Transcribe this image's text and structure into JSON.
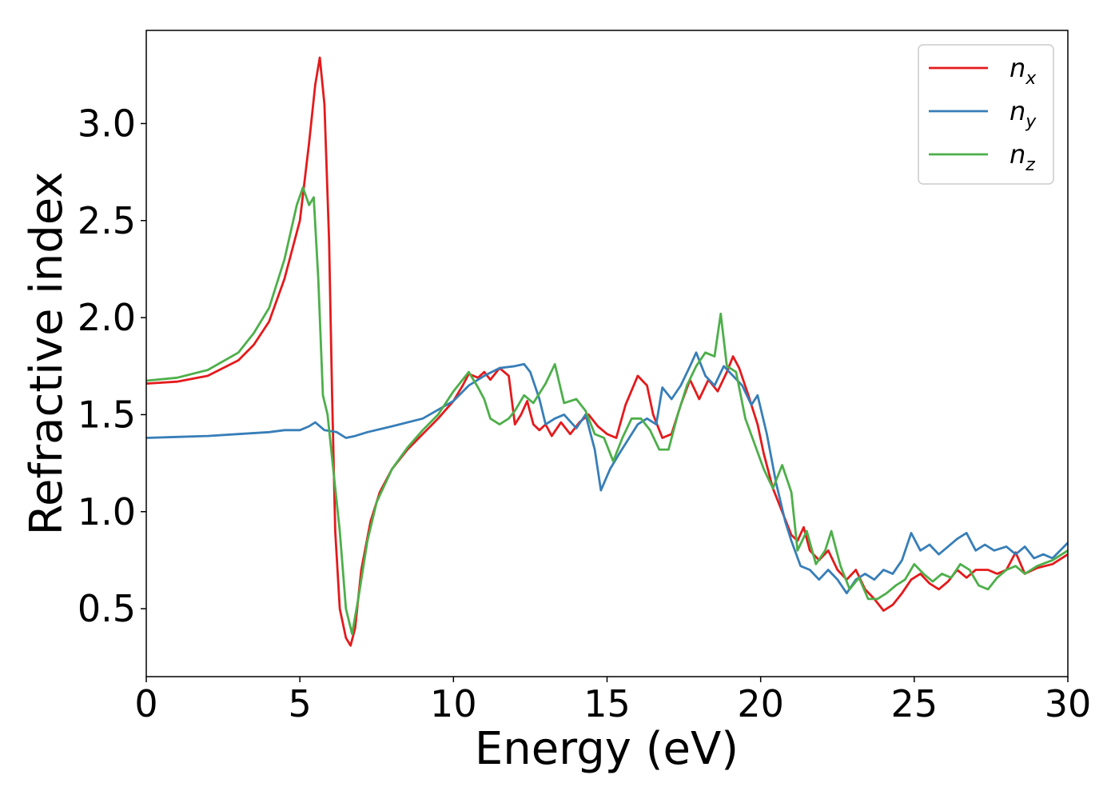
{
  "chart_data": {
    "type": "line",
    "title": "",
    "xlabel": "Energy (eV)",
    "ylabel": "Refractive index",
    "xlim": [
      0,
      30
    ],
    "ylim": [
      0.15,
      3.48
    ],
    "xticks": [
      0,
      5,
      10,
      15,
      20,
      25,
      30
    ],
    "yticks": [
      0.5,
      1.0,
      1.5,
      2.0,
      2.5,
      3.0
    ],
    "xtick_labels": [
      "0",
      "5",
      "10",
      "15",
      "20",
      "25",
      "30"
    ],
    "ytick_labels": [
      "0.5",
      "1.0",
      "1.5",
      "2.0",
      "2.5",
      "3.0"
    ],
    "grid": false,
    "legend_position": "top-right",
    "series": [
      {
        "name": "n_x",
        "label_main": "n",
        "label_sub": "x",
        "color": "#e41a1c",
        "points": [
          [
            0,
            1.66
          ],
          [
            1,
            1.67
          ],
          [
            2,
            1.7
          ],
          [
            3,
            1.78
          ],
          [
            3.5,
            1.86
          ],
          [
            4,
            1.98
          ],
          [
            4.5,
            2.2
          ],
          [
            5,
            2.5
          ],
          [
            5.3,
            2.9
          ],
          [
            5.5,
            3.2
          ],
          [
            5.65,
            3.34
          ],
          [
            5.8,
            3.1
          ],
          [
            5.95,
            2.4
          ],
          [
            6.05,
            1.6
          ],
          [
            6.15,
            0.9
          ],
          [
            6.3,
            0.5
          ],
          [
            6.5,
            0.35
          ],
          [
            6.65,
            0.31
          ],
          [
            6.8,
            0.4
          ],
          [
            7.0,
            0.7
          ],
          [
            7.3,
            0.95
          ],
          [
            7.6,
            1.1
          ],
          [
            8,
            1.22
          ],
          [
            8.5,
            1.32
          ],
          [
            9,
            1.4
          ],
          [
            9.5,
            1.48
          ],
          [
            10,
            1.57
          ],
          [
            10.3,
            1.65
          ],
          [
            10.5,
            1.71
          ],
          [
            10.8,
            1.69
          ],
          [
            11.0,
            1.72
          ],
          [
            11.2,
            1.68
          ],
          [
            11.5,
            1.74
          ],
          [
            11.8,
            1.7
          ],
          [
            12.0,
            1.45
          ],
          [
            12.2,
            1.5
          ],
          [
            12.4,
            1.57
          ],
          [
            12.6,
            1.45
          ],
          [
            12.8,
            1.42
          ],
          [
            13.0,
            1.45
          ],
          [
            13.2,
            1.39
          ],
          [
            13.5,
            1.46
          ],
          [
            13.8,
            1.4
          ],
          [
            14.1,
            1.46
          ],
          [
            14.4,
            1.5
          ],
          [
            14.7,
            1.44
          ],
          [
            15.0,
            1.4
          ],
          [
            15.3,
            1.38
          ],
          [
            15.6,
            1.55
          ],
          [
            16.0,
            1.7
          ],
          [
            16.3,
            1.65
          ],
          [
            16.5,
            1.5
          ],
          [
            16.8,
            1.38
          ],
          [
            17.1,
            1.4
          ],
          [
            17.4,
            1.55
          ],
          [
            17.7,
            1.68
          ],
          [
            18.0,
            1.58
          ],
          [
            18.3,
            1.68
          ],
          [
            18.6,
            1.62
          ],
          [
            18.9,
            1.72
          ],
          [
            19.1,
            1.8
          ],
          [
            19.3,
            1.74
          ],
          [
            19.6,
            1.6
          ],
          [
            19.9,
            1.45
          ],
          [
            20.1,
            1.3
          ],
          [
            20.4,
            1.12
          ],
          [
            20.7,
            1.0
          ],
          [
            21.0,
            0.88
          ],
          [
            21.2,
            0.85
          ],
          [
            21.4,
            0.92
          ],
          [
            21.6,
            0.8
          ],
          [
            21.9,
            0.75
          ],
          [
            22.2,
            0.8
          ],
          [
            22.5,
            0.7
          ],
          [
            22.8,
            0.65
          ],
          [
            23.1,
            0.7
          ],
          [
            23.4,
            0.6
          ],
          [
            23.7,
            0.55
          ],
          [
            24.0,
            0.49
          ],
          [
            24.3,
            0.52
          ],
          [
            24.6,
            0.58
          ],
          [
            24.9,
            0.65
          ],
          [
            25.2,
            0.68
          ],
          [
            25.5,
            0.63
          ],
          [
            25.8,
            0.6
          ],
          [
            26.1,
            0.64
          ],
          [
            26.4,
            0.7
          ],
          [
            26.7,
            0.66
          ],
          [
            27.0,
            0.7
          ],
          [
            27.4,
            0.7
          ],
          [
            27.7,
            0.68
          ],
          [
            28.0,
            0.7
          ],
          [
            28.3,
            0.79
          ],
          [
            28.6,
            0.68
          ],
          [
            29.0,
            0.71
          ],
          [
            29.5,
            0.73
          ],
          [
            30,
            0.78
          ]
        ]
      },
      {
        "name": "n_y",
        "label_main": "n",
        "label_sub": "y",
        "color": "#377eb8",
        "points": [
          [
            0,
            1.38
          ],
          [
            1,
            1.385
          ],
          [
            2,
            1.39
          ],
          [
            3,
            1.4
          ],
          [
            4,
            1.41
          ],
          [
            4.5,
            1.42
          ],
          [
            5,
            1.42
          ],
          [
            5.3,
            1.44
          ],
          [
            5.5,
            1.46
          ],
          [
            5.8,
            1.42
          ],
          [
            6.2,
            1.41
          ],
          [
            6.5,
            1.38
          ],
          [
            6.8,
            1.39
          ],
          [
            7.2,
            1.41
          ],
          [
            8,
            1.44
          ],
          [
            9,
            1.48
          ],
          [
            10,
            1.57
          ],
          [
            10.5,
            1.65
          ],
          [
            11,
            1.7
          ],
          [
            11.5,
            1.74
          ],
          [
            12,
            1.75
          ],
          [
            12.3,
            1.76
          ],
          [
            12.5,
            1.72
          ],
          [
            12.8,
            1.58
          ],
          [
            13.0,
            1.45
          ],
          [
            13.3,
            1.48
          ],
          [
            13.6,
            1.5
          ],
          [
            14.0,
            1.43
          ],
          [
            14.3,
            1.5
          ],
          [
            14.6,
            1.32
          ],
          [
            14.8,
            1.11
          ],
          [
            15.1,
            1.22
          ],
          [
            15.4,
            1.3
          ],
          [
            15.8,
            1.4
          ],
          [
            16.0,
            1.45
          ],
          [
            16.3,
            1.48
          ],
          [
            16.6,
            1.45
          ],
          [
            16.8,
            1.64
          ],
          [
            17.1,
            1.58
          ],
          [
            17.4,
            1.65
          ],
          [
            17.7,
            1.75
          ],
          [
            17.9,
            1.82
          ],
          [
            18.2,
            1.7
          ],
          [
            18.5,
            1.65
          ],
          [
            18.8,
            1.75
          ],
          [
            19.1,
            1.7
          ],
          [
            19.4,
            1.65
          ],
          [
            19.7,
            1.55
          ],
          [
            19.9,
            1.6
          ],
          [
            20.2,
            1.4
          ],
          [
            20.5,
            1.15
          ],
          [
            20.8,
            0.95
          ],
          [
            21.0,
            0.85
          ],
          [
            21.3,
            0.72
          ],
          [
            21.6,
            0.7
          ],
          [
            21.9,
            0.65
          ],
          [
            22.2,
            0.7
          ],
          [
            22.5,
            0.65
          ],
          [
            22.8,
            0.58
          ],
          [
            23.1,
            0.65
          ],
          [
            23.4,
            0.68
          ],
          [
            23.7,
            0.65
          ],
          [
            24.0,
            0.7
          ],
          [
            24.3,
            0.68
          ],
          [
            24.6,
            0.75
          ],
          [
            24.9,
            0.89
          ],
          [
            25.2,
            0.8
          ],
          [
            25.5,
            0.83
          ],
          [
            25.8,
            0.78
          ],
          [
            26.1,
            0.82
          ],
          [
            26.4,
            0.86
          ],
          [
            26.7,
            0.89
          ],
          [
            27.0,
            0.8
          ],
          [
            27.3,
            0.83
          ],
          [
            27.6,
            0.8
          ],
          [
            28.0,
            0.82
          ],
          [
            28.3,
            0.78
          ],
          [
            28.6,
            0.82
          ],
          [
            28.9,
            0.76
          ],
          [
            29.2,
            0.78
          ],
          [
            29.5,
            0.76
          ],
          [
            30,
            0.84
          ]
        ]
      },
      {
        "name": "n_z",
        "label_main": "n",
        "label_sub": "z",
        "color": "#4daf4a",
        "points": [
          [
            0,
            1.675
          ],
          [
            1,
            1.69
          ],
          [
            2,
            1.73
          ],
          [
            3,
            1.82
          ],
          [
            3.5,
            1.92
          ],
          [
            4,
            2.05
          ],
          [
            4.5,
            2.3
          ],
          [
            4.9,
            2.58
          ],
          [
            5.1,
            2.67
          ],
          [
            5.3,
            2.58
          ],
          [
            5.45,
            2.62
          ],
          [
            5.6,
            2.2
          ],
          [
            5.75,
            1.6
          ],
          [
            5.9,
            1.5
          ],
          [
            6.1,
            1.2
          ],
          [
            6.3,
            0.9
          ],
          [
            6.5,
            0.5
          ],
          [
            6.7,
            0.37
          ],
          [
            6.9,
            0.55
          ],
          [
            7.2,
            0.85
          ],
          [
            7.5,
            1.05
          ],
          [
            8,
            1.22
          ],
          [
            8.5,
            1.33
          ],
          [
            9,
            1.42
          ],
          [
            9.5,
            1.5
          ],
          [
            10,
            1.62
          ],
          [
            10.5,
            1.72
          ],
          [
            10.8,
            1.64
          ],
          [
            11.0,
            1.58
          ],
          [
            11.2,
            1.48
          ],
          [
            11.5,
            1.45
          ],
          [
            11.8,
            1.48
          ],
          [
            12.0,
            1.52
          ],
          [
            12.3,
            1.6
          ],
          [
            12.6,
            1.56
          ],
          [
            13.0,
            1.66
          ],
          [
            13.3,
            1.76
          ],
          [
            13.6,
            1.56
          ],
          [
            14.0,
            1.58
          ],
          [
            14.3,
            1.52
          ],
          [
            14.6,
            1.4
          ],
          [
            14.9,
            1.38
          ],
          [
            15.2,
            1.26
          ],
          [
            15.5,
            1.38
          ],
          [
            15.8,
            1.48
          ],
          [
            16.1,
            1.48
          ],
          [
            16.4,
            1.42
          ],
          [
            16.7,
            1.32
          ],
          [
            17.0,
            1.32
          ],
          [
            17.3,
            1.5
          ],
          [
            17.6,
            1.65
          ],
          [
            17.9,
            1.75
          ],
          [
            18.2,
            1.82
          ],
          [
            18.5,
            1.8
          ],
          [
            18.7,
            2.02
          ],
          [
            18.9,
            1.75
          ],
          [
            19.2,
            1.72
          ],
          [
            19.5,
            1.48
          ],
          [
            19.8,
            1.35
          ],
          [
            20.1,
            1.22
          ],
          [
            20.4,
            1.12
          ],
          [
            20.7,
            1.24
          ],
          [
            21.0,
            1.1
          ],
          [
            21.2,
            0.8
          ],
          [
            21.5,
            0.9
          ],
          [
            21.8,
            0.73
          ],
          [
            22.1,
            0.8
          ],
          [
            22.3,
            0.9
          ],
          [
            22.6,
            0.72
          ],
          [
            22.9,
            0.6
          ],
          [
            23.2,
            0.66
          ],
          [
            23.5,
            0.55
          ],
          [
            23.8,
            0.55
          ],
          [
            24.1,
            0.58
          ],
          [
            24.4,
            0.62
          ],
          [
            24.7,
            0.65
          ],
          [
            25.0,
            0.73
          ],
          [
            25.3,
            0.68
          ],
          [
            25.6,
            0.64
          ],
          [
            25.9,
            0.68
          ],
          [
            26.2,
            0.66
          ],
          [
            26.5,
            0.73
          ],
          [
            26.8,
            0.7
          ],
          [
            27.1,
            0.62
          ],
          [
            27.4,
            0.6
          ],
          [
            27.7,
            0.66
          ],
          [
            28.0,
            0.7
          ],
          [
            28.3,
            0.72
          ],
          [
            28.6,
            0.68
          ],
          [
            29.0,
            0.72
          ],
          [
            29.5,
            0.75
          ],
          [
            30,
            0.8
          ]
        ]
      }
    ]
  }
}
